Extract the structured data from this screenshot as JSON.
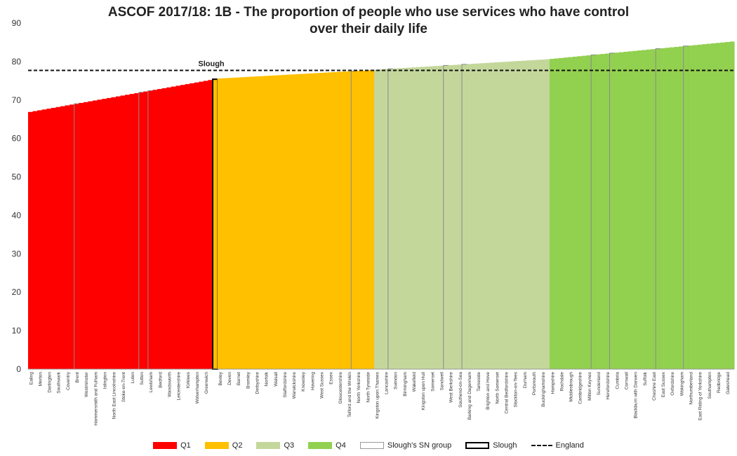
{
  "chart_data": {
    "type": "bar",
    "title_line1": "ASCOF 2017/18: 1B - The proportion of people who use services who have control",
    "title_line2": "over their daily life",
    "ylim": [
      0,
      90
    ],
    "yticks": [
      "0",
      "10",
      "20",
      "30",
      "40",
      "50",
      "60",
      "70",
      "80",
      "90"
    ],
    "reference_line": {
      "name": "England",
      "value": 77.7,
      "label": "Slough"
    },
    "highlight": {
      "name": "Slough",
      "value": 75.4
    },
    "quartiles": [
      {
        "name": "Q1",
        "color": "#ff0000",
        "start": 66.9,
        "end": 75.2
      },
      {
        "name": "Q2",
        "color": "#ffc000",
        "start": 75.6,
        "end": 77.8
      },
      {
        "name": "Q3",
        "color": "#c4d79b",
        "start": 77.9,
        "end": 80.6
      },
      {
        "name": "Q4",
        "color": "#92d050",
        "start": 80.7,
        "end": 85.2
      }
    ],
    "q1_labels": [
      "Ealing",
      "Merton",
      "Darlington",
      "Southwark",
      "Coventry",
      "Brent",
      "Westminster",
      "Hammersmith and Fulham",
      "Islington",
      "North East Lincolnshire",
      "Stoke-on-Trent",
      "Luton",
      "Sutton",
      "Lewisham",
      "Bedford",
      "Wandsworth",
      "Leicestershire",
      "Kirklees",
      "Wolverhampton",
      "Greenwich"
    ],
    "q2_labels": [
      "Bexley",
      "Devon",
      "Barnet",
      "Bromley",
      "Derbyshire",
      "Norfolk",
      "Walsall",
      "Staffordshire",
      "Warwickshire",
      "Knowsley",
      "Havering",
      "West Sussex",
      "Essex",
      "Gloucestershire",
      "Telford and the Wrekin",
      "North Yorkshire",
      "North Tyneside"
    ],
    "q3_labels": [
      "Kingston upon Thames",
      "Lancashire",
      "Swindon",
      "Birmingham",
      "Wakefield",
      "Kingston upon Hull",
      "Somerset",
      "Sandwell",
      "West Berkshire",
      "Southend-on-Sea",
      "Barking and Dagenham",
      "Tameside",
      "Brighton and Hove",
      "North Somerset",
      "Central Bedfordshire",
      "Stockton-on-Tees",
      "Durham",
      "Portsmouth",
      "Buckinghamshire"
    ],
    "q4_labels": [
      "Hampshire",
      "Rochdale",
      "Middlesbrough",
      "Cambridgeshire",
      "Milton Keynes",
      "Sunderland",
      "Herefordshire",
      "Cumbria",
      "Cornwall",
      "Blackburn with Darwen",
      "Suffolk",
      "Cheshire East",
      "East Sussex",
      "Oxfordshire",
      "Wokingham",
      "Northumberland",
      "East Riding of Yorkshire",
      "Southampton",
      "Redbridge",
      "Gateshead"
    ],
    "legend": [
      "Q1",
      "Q2",
      "Q3",
      "Q4",
      "Slough's SN group",
      "Slough",
      "England"
    ]
  }
}
